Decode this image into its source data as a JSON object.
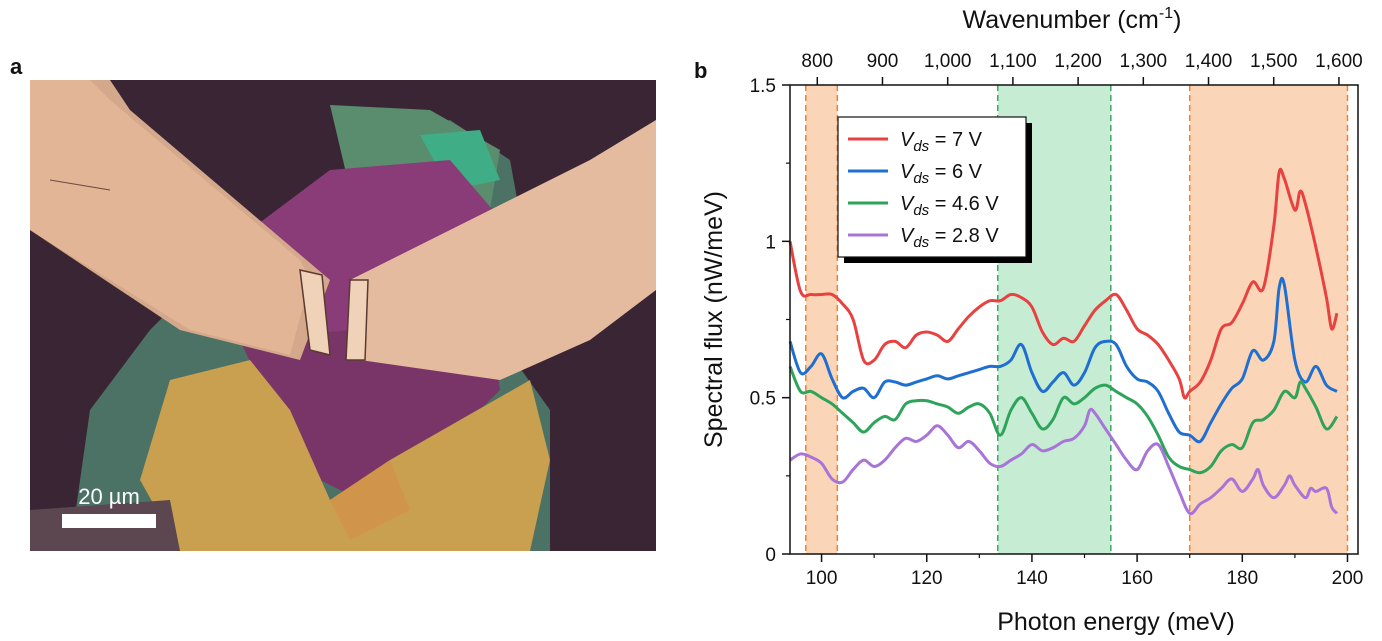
{
  "panel_a": {
    "label": "a",
    "scale_bar": "20 µm"
  },
  "panel_b": {
    "label": "b"
  },
  "chart_data": {
    "type": "line",
    "xlabel": "Photon energy (meV)",
    "ylabel": "Spectral flux (nW/meV)",
    "top_axis_label_base": "Wavenumber (cm",
    "top_axis_label_sup": "-1",
    "top_axis_label_end": ")",
    "xlim": [
      94,
      202
    ],
    "ylim": [
      0,
      1.5
    ],
    "x_ticks": [
      100,
      120,
      140,
      160,
      180,
      200
    ],
    "y_ticks": [
      0,
      0.5,
      1,
      1.5
    ],
    "y_tick_labels": [
      "0",
      "0.5",
      "1",
      "1.5"
    ],
    "top_ticks": [
      800,
      900,
      1000,
      1100,
      1200,
      1300,
      1400,
      1500,
      1600
    ],
    "top_tick_labels": [
      "800",
      "900",
      "1,000",
      "1,100",
      "1,200",
      "1,300",
      "1,400",
      "1,500",
      "1,600"
    ],
    "shaded_regions": [
      {
        "x": [
          97,
          103
        ],
        "color": "#fbd5b8",
        "edge": "#f08030"
      },
      {
        "x": [
          133.5,
          155
        ],
        "color": "#c6ecd4",
        "edge": "#3aa860"
      },
      {
        "x": [
          170,
          200
        ],
        "color": "#fbd5b8",
        "edge": "#f08030"
      }
    ],
    "legend_position": "top-left",
    "series": [
      {
        "name_var": "V",
        "name_sub": "ds",
        "name_val": " = 7 V",
        "color": "#e8413f",
        "x": [
          94,
          96,
          98,
          100,
          102,
          104,
          106,
          108,
          110,
          112,
          114,
          116,
          118,
          120,
          122,
          124,
          126,
          128,
          130,
          132,
          134,
          136,
          138,
          140,
          142,
          144,
          146,
          148,
          150,
          152,
          154,
          156,
          158,
          160,
          162,
          164,
          166,
          168,
          169,
          170,
          172,
          174,
          176,
          178,
          180,
          182,
          184,
          186,
          187,
          188,
          190,
          191,
          192,
          194,
          196,
          197,
          198
        ],
        "y": [
          1.0,
          0.84,
          0.83,
          0.83,
          0.83,
          0.8,
          0.75,
          0.62,
          0.62,
          0.67,
          0.68,
          0.66,
          0.7,
          0.71,
          0.7,
          0.68,
          0.72,
          0.76,
          0.79,
          0.81,
          0.81,
          0.83,
          0.82,
          0.79,
          0.71,
          0.67,
          0.69,
          0.68,
          0.73,
          0.78,
          0.81,
          0.83,
          0.78,
          0.72,
          0.7,
          0.67,
          0.62,
          0.56,
          0.5,
          0.52,
          0.55,
          0.62,
          0.72,
          0.74,
          0.8,
          0.87,
          0.85,
          1.05,
          1.22,
          1.2,
          1.1,
          1.16,
          1.12,
          0.98,
          0.82,
          0.72,
          0.77
        ]
      },
      {
        "name_var": "V",
        "name_sub": "ds",
        "name_val": " = 6 V",
        "color": "#1f6fd0",
        "x": [
          94,
          96,
          98,
          100,
          102,
          104,
          106,
          108,
          110,
          112,
          114,
          116,
          118,
          120,
          122,
          124,
          126,
          128,
          130,
          132,
          134,
          136,
          138,
          140,
          142,
          144,
          146,
          148,
          150,
          152,
          154,
          156,
          158,
          160,
          162,
          164,
          166,
          168,
          170,
          172,
          174,
          176,
          178,
          180,
          182,
          184,
          186,
          187,
          188,
          190,
          192,
          194,
          196,
          198
        ],
        "y": [
          0.68,
          0.58,
          0.6,
          0.64,
          0.56,
          0.5,
          0.52,
          0.53,
          0.5,
          0.55,
          0.55,
          0.54,
          0.55,
          0.56,
          0.57,
          0.56,
          0.57,
          0.58,
          0.59,
          0.6,
          0.6,
          0.62,
          0.67,
          0.58,
          0.52,
          0.55,
          0.58,
          0.54,
          0.58,
          0.66,
          0.68,
          0.67,
          0.6,
          0.56,
          0.55,
          0.52,
          0.45,
          0.39,
          0.38,
          0.36,
          0.42,
          0.48,
          0.53,
          0.56,
          0.65,
          0.62,
          0.68,
          0.85,
          0.86,
          0.62,
          0.55,
          0.6,
          0.54,
          0.52
        ]
      },
      {
        "name_var": "V",
        "name_sub": "ds",
        "name_val": " = 4.6 V",
        "color": "#2ea35a",
        "x": [
          94,
          96,
          98,
          100,
          102,
          104,
          106,
          108,
          110,
          112,
          114,
          116,
          118,
          120,
          122,
          124,
          126,
          128,
          130,
          132,
          134,
          136,
          138,
          140,
          142,
          144,
          146,
          148,
          150,
          152,
          154,
          156,
          158,
          160,
          162,
          164,
          166,
          168,
          170,
          172,
          174,
          176,
          178,
          180,
          182,
          184,
          186,
          188,
          190,
          191,
          192,
          194,
          196,
          198
        ],
        "y": [
          0.6,
          0.52,
          0.52,
          0.5,
          0.48,
          0.45,
          0.42,
          0.39,
          0.42,
          0.44,
          0.43,
          0.48,
          0.49,
          0.49,
          0.48,
          0.47,
          0.45,
          0.47,
          0.48,
          0.45,
          0.38,
          0.46,
          0.5,
          0.45,
          0.4,
          0.43,
          0.5,
          0.48,
          0.5,
          0.53,
          0.54,
          0.52,
          0.5,
          0.48,
          0.44,
          0.38,
          0.31,
          0.28,
          0.27,
          0.26,
          0.28,
          0.33,
          0.35,
          0.34,
          0.42,
          0.43,
          0.46,
          0.52,
          0.5,
          0.55,
          0.53,
          0.47,
          0.4,
          0.44
        ]
      },
      {
        "name_var": "V",
        "name_sub": "ds",
        "name_val": " = 2.8 V",
        "color": "#a874d8",
        "x": [
          94,
          96,
          98,
          100,
          102,
          104,
          106,
          108,
          110,
          112,
          114,
          116,
          118,
          120,
          122,
          124,
          126,
          128,
          130,
          132,
          134,
          136,
          138,
          140,
          142,
          144,
          146,
          148,
          150,
          151,
          152,
          154,
          156,
          158,
          160,
          162,
          164,
          166,
          168,
          170,
          172,
          174,
          176,
          178,
          180,
          182,
          183,
          184,
          186,
          188,
          189,
          190,
          192,
          193,
          194,
          196,
          197,
          198
        ],
        "y": [
          0.3,
          0.32,
          0.31,
          0.29,
          0.24,
          0.23,
          0.27,
          0.3,
          0.28,
          0.3,
          0.34,
          0.37,
          0.36,
          0.38,
          0.41,
          0.38,
          0.34,
          0.36,
          0.33,
          0.29,
          0.28,
          0.3,
          0.32,
          0.35,
          0.33,
          0.34,
          0.36,
          0.37,
          0.41,
          0.46,
          0.45,
          0.4,
          0.35,
          0.3,
          0.27,
          0.33,
          0.35,
          0.28,
          0.2,
          0.13,
          0.16,
          0.18,
          0.21,
          0.24,
          0.2,
          0.24,
          0.27,
          0.22,
          0.18,
          0.22,
          0.25,
          0.22,
          0.18,
          0.21,
          0.2,
          0.21,
          0.15,
          0.13
        ]
      }
    ]
  }
}
